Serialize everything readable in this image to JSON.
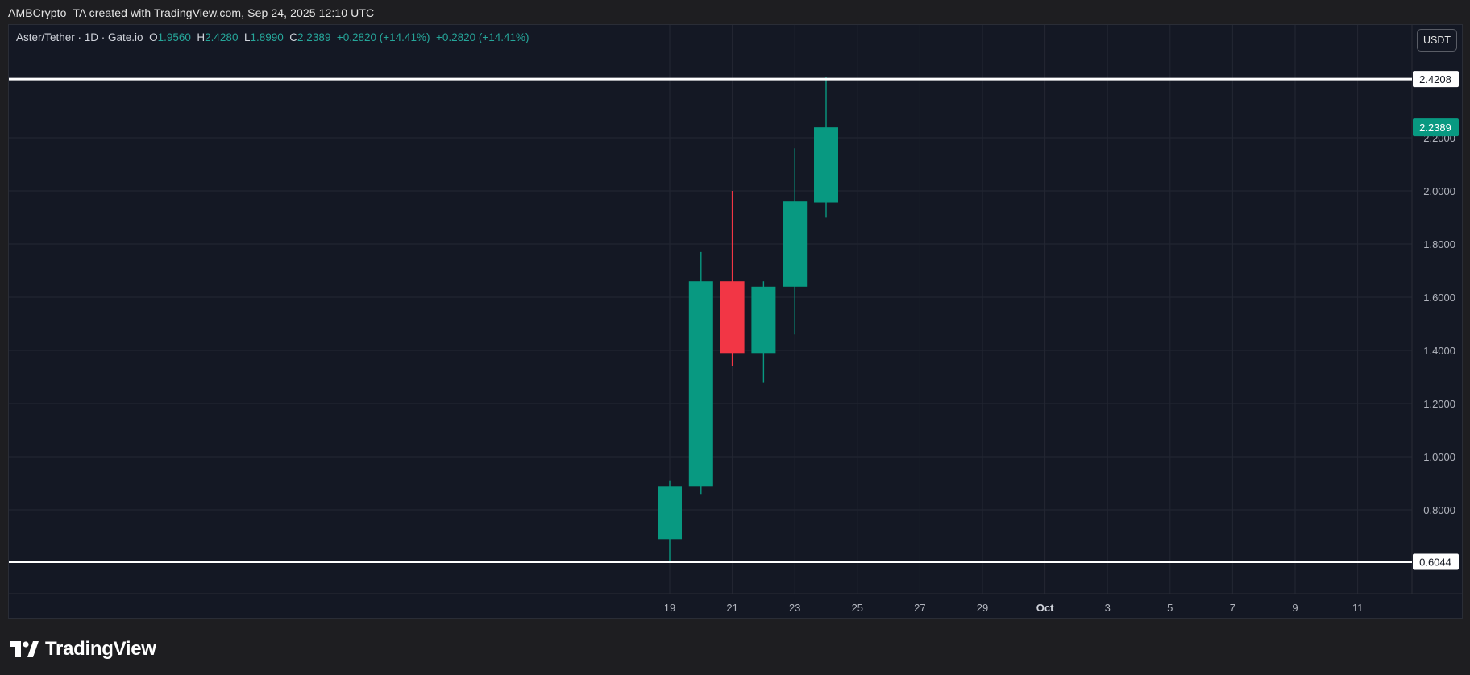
{
  "header": {
    "credit": "AMBCrypto_TA created with TradingView.com, Sep 24, 2025 12:10 UTC"
  },
  "legend": {
    "symbol": "Aster/Tether · 1D · Gate.io",
    "open_label": "O",
    "open": "1.9560",
    "high_label": "H",
    "high": "2.4280",
    "low_label": "L",
    "low": "1.8990",
    "close_label": "C",
    "close": "2.2389",
    "change1": "+0.2820 (+14.41%)",
    "change2": "+0.2820 (+14.41%)"
  },
  "currency_button": "USDT",
  "logo": {
    "text": "TradingView",
    "icon": "tradingview-logo-icon"
  },
  "colors": {
    "up": "#089981",
    "down": "#f23645",
    "background": "#141824",
    "grid": "#232733",
    "axis_text": "#b2b5be",
    "level_line": "#ffffff"
  },
  "chart_data": {
    "type": "candlestick",
    "ylim": [
      0.48,
      2.5
    ],
    "y_ticks": [
      "0.8000",
      "1.0000",
      "1.2000",
      "1.4000",
      "1.6000",
      "1.8000",
      "2.0000",
      "2.2000"
    ],
    "x_ticks": [
      "19",
      "21",
      "23",
      "25",
      "27",
      "29",
      "Oct",
      "3",
      "5",
      "7",
      "9",
      "11"
    ],
    "candles": [
      {
        "day": "Sep 19",
        "open": 0.69,
        "high": 0.91,
        "low": 0.6,
        "close": 0.89
      },
      {
        "day": "Sep 20",
        "open": 0.89,
        "high": 1.77,
        "low": 0.86,
        "close": 1.66
      },
      {
        "day": "Sep 21",
        "open": 1.66,
        "high": 2.0,
        "low": 1.34,
        "close": 1.39
      },
      {
        "day": "Sep 22",
        "open": 1.39,
        "high": 1.66,
        "low": 1.28,
        "close": 1.64
      },
      {
        "day": "Sep 23",
        "open": 1.64,
        "high": 2.16,
        "low": 1.46,
        "close": 1.96
      },
      {
        "day": "Sep 24",
        "open": 1.956,
        "high": 2.428,
        "low": 1.899,
        "close": 2.2389
      }
    ],
    "levels": [
      {
        "value": "2.4208"
      },
      {
        "value": "0.6044"
      }
    ],
    "last_price": "2.2389",
    "grid": true
  }
}
